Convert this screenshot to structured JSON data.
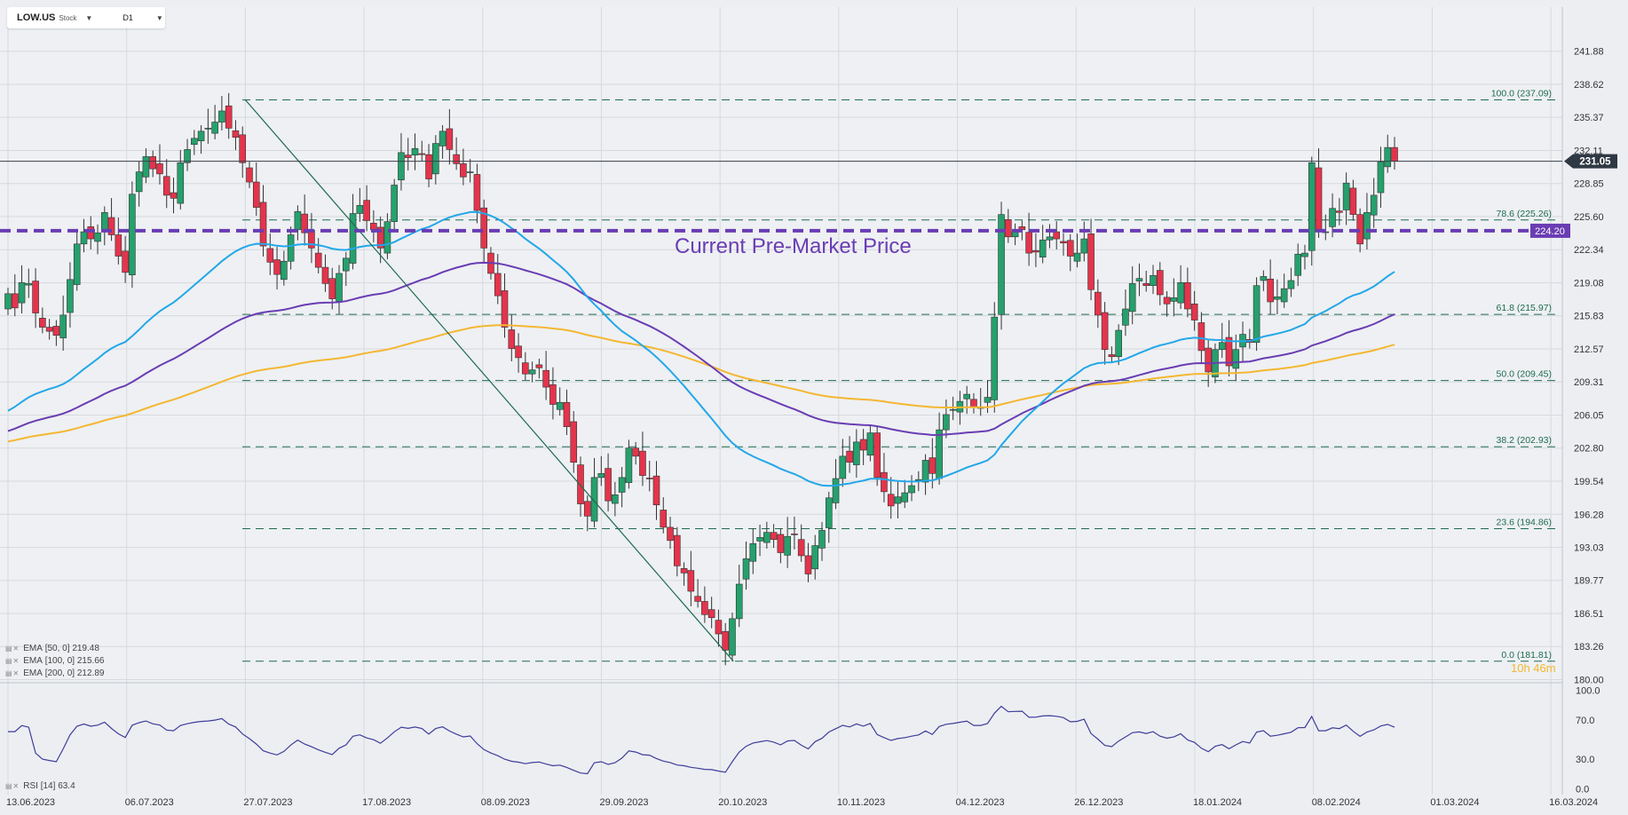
{
  "header": {
    "symbol": "LOW.US",
    "asset_type": "Stock",
    "timeframe": "D1",
    "symbol_caret_icon": "caret-down-icon",
    "timeframe_caret_icon": "caret-down-icon"
  },
  "indicators": {
    "ema50": {
      "label": "EMA",
      "params": "[50,  0]",
      "value": "219.48",
      "color": "#23a7e8"
    },
    "ema100": {
      "label": "EMA",
      "params": "[100,  0]",
      "value": "215.66",
      "color": "#6a3db3"
    },
    "ema200": {
      "label": "EMA",
      "params": "[200,  0]",
      "value": "212.89",
      "color": "#f4b731"
    },
    "rsi": {
      "label": "RSI",
      "params": "[14]",
      "value": "63.4",
      "color": "#3f3d99"
    },
    "legend_icon": "settings-close-icon"
  },
  "countdown": "10h 46m",
  "chart_data": {
    "type": "candlestick",
    "symbol": "LOW.US",
    "timeframe": "D1",
    "price_axis": {
      "ticks": [
        "241.88",
        "238.62",
        "235.37",
        "232.11",
        "228.85",
        "225.60",
        "222.34",
        "219.08",
        "215.83",
        "212.57",
        "209.31",
        "206.05",
        "202.80",
        "199.54",
        "196.28",
        "193.03",
        "189.77",
        "186.51",
        "183.26",
        "180.00"
      ],
      "min": 180.0,
      "max": 241.88
    },
    "date_axis": {
      "ticks": [
        "13.06.2023",
        "06.07.2023",
        "27.07.2023",
        "17.08.2023",
        "08.09.2023",
        "29.09.2023",
        "20.10.2023",
        "10.11.2023",
        "04.12.2023",
        "26.12.2023",
        "18.01.2024",
        "08.02.2024",
        "01.03.2024",
        "16.03.2024"
      ]
    },
    "current_price": "231.05",
    "premarket": {
      "label": "Current Pre-Market Price",
      "value": "224.20",
      "color": "#6a3db3"
    },
    "fibonacci": [
      {
        "label": "100.0 (237.09)",
        "value": 237.09
      },
      {
        "label": "78.6 (225.26)",
        "value": 225.26
      },
      {
        "label": "61.8 (215.97)",
        "value": 215.97
      },
      {
        "label": "50.0 (209.45)",
        "value": 209.45
      },
      {
        "label": "38.2 (202.93)",
        "value": 202.93
      },
      {
        "label": "23.6 (194.86)",
        "value": 194.86
      },
      {
        "label": "0.0 (181.81)",
        "value": 181.81
      }
    ],
    "trendline": {
      "from": {
        "date": "27.07.2023",
        "price": 237.09
      },
      "to": {
        "date": "23.10.2023",
        "price": 181.81
      }
    },
    "closes": [
      218.0,
      216.6,
      219.1,
      219.0,
      216.1,
      214.7,
      214.3,
      213.9,
      215.9,
      219.4,
      222.9,
      224.1,
      223.4,
      224.0,
      226.0,
      223.8,
      221.7,
      220.1,
      227.8,
      230.0,
      231.5,
      230.3,
      229.8,
      227.7,
      227.4,
      230.9,
      232.2,
      233.3,
      234.0,
      234.3,
      234.9,
      236.0,
      234.3,
      233.4,
      230.9,
      229.0,
      226.5,
      222.7,
      221.1,
      219.9,
      221.2,
      223.8,
      226.1,
      224.0,
      222.5,
      220.6,
      219.0,
      217.5,
      220.0,
      221.5,
      225.9,
      226.7,
      225.2,
      224.3,
      222.5,
      225.1,
      228.7,
      231.9,
      231.4,
      232.3,
      231.7,
      229.3,
      232.8,
      234.0,
      232.2,
      230.8,
      229.5,
      230.0,
      226.2,
      222.5,
      220.0,
      217.8,
      214.7,
      212.6,
      211.7,
      210.1,
      210.5,
      210.7,
      208.8,
      207.1,
      207.3,
      204.9,
      201.4,
      197.3,
      196.1,
      199.9,
      200.3,
      197.6,
      198.2,
      199.9,
      202.8,
      202.0,
      200.1,
      199.8,
      197.2,
      195.0,
      193.7,
      191.2,
      190.5,
      188.7,
      187.7,
      186.4,
      186.1,
      184.5,
      182.9,
      186.0,
      189.4,
      191.9,
      193.4,
      194.0,
      194.5,
      193.8,
      192.5,
      194.1,
      194.3,
      192.2,
      190.4,
      193.2,
      194.7,
      197.9,
      199.8,
      202.0,
      201.4,
      203.4,
      202.6,
      204.3,
      199.9,
      198.5,
      197.1,
      198.0,
      198.4,
      199.1,
      199.7,
      201.6,
      200.3,
      204.6,
      206.1,
      206.6,
      207.4,
      208.1,
      206.8,
      206.8,
      207.8,
      215.7,
      225.8,
      223.6,
      224.1,
      224.3,
      222.0,
      222.1,
      223.3,
      223.6,
      223.4,
      223.0,
      221.7,
      222.0,
      223.4,
      218.4,
      215.9,
      212.5,
      211.8,
      214.4,
      216.5,
      219.0,
      219.5,
      218.8,
      219.8,
      217.9,
      217.0,
      217.6,
      219.1,
      216.5,
      215.4,
      212.4,
      210.3,
      212.5,
      213.2,
      210.9,
      212.5,
      214.0,
      213.2,
      218.8,
      219.7,
      217.2,
      217.7,
      218.5,
      219.3,
      221.9,
      222.0,
      230.9,
      224.1,
      224.1,
      226.4,
      226.0,
      228.9,
      225.8,
      222.9,
      226.0,
      227.7,
      231.0,
      232.4,
      231.05
    ],
    "ema50": {
      "start": 206.0,
      "end": 219.48
    },
    "ema100": {
      "start": 204.2,
      "end": 215.66
    },
    "ema200": {
      "start": 203.3,
      "end": 212.89
    },
    "rsi": {
      "axis_ticks": [
        "100.0",
        "70.0",
        "30.0",
        "0.0"
      ],
      "min": 0,
      "max": 100,
      "last": 63.4
    }
  }
}
